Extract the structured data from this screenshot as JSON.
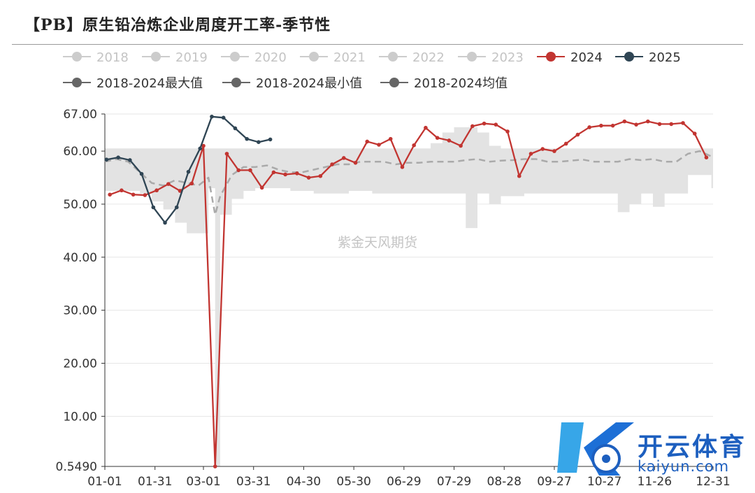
{
  "title": "【PB】原生铅冶炼企业周度开工率-季节性",
  "watermark": "紫金天风期货",
  "logo": {
    "text": "开云体育",
    "sub": "kaiyun.com"
  },
  "chart_data": {
    "type": "line",
    "title": "【PB】原生铅冶炼企业周度开工率-季节性",
    "xlabel": "",
    "ylabel": "",
    "x_ticks": [
      "01-01",
      "01-31",
      "03-01",
      "03-31",
      "04-30",
      "05-30",
      "06-29",
      "07-29",
      "08-28",
      "09-27",
      "10-27",
      "11-26",
      "12-31"
    ],
    "y_ticks": [
      {
        "value": 0.549,
        "label": "0.5490"
      },
      {
        "value": 10,
        "label": "10.00"
      },
      {
        "value": 20,
        "label": "20.00"
      },
      {
        "value": 30,
        "label": "30.00"
      },
      {
        "value": 40,
        "label": "40.00"
      },
      {
        "value": 50,
        "label": "50.00"
      },
      {
        "value": 60,
        "label": "60.00"
      },
      {
        "value": 67,
        "label": "67.00"
      }
    ],
    "ylim": [
      0.549,
      67
    ],
    "grid": true,
    "legend_position": "top",
    "legend": [
      {
        "name": "2018",
        "color": "#cccccc",
        "active": false
      },
      {
        "name": "2019",
        "color": "#cccccc",
        "active": false
      },
      {
        "name": "2020",
        "color": "#cccccc",
        "active": false
      },
      {
        "name": "2021",
        "color": "#cccccc",
        "active": false
      },
      {
        "name": "2022",
        "color": "#cccccc",
        "active": false
      },
      {
        "name": "2023",
        "color": "#cccccc",
        "active": false
      },
      {
        "name": "2024",
        "color": "#c23531",
        "active": true
      },
      {
        "name": "2025",
        "color": "#2f4554",
        "active": true
      },
      {
        "name": "2018-2024最大值",
        "color": "#666666",
        "active": true
      },
      {
        "name": "2018-2024最小值",
        "color": "#666666",
        "active": true
      },
      {
        "name": "2018-2024均值",
        "color": "#666666",
        "active": true
      }
    ],
    "range_band": {
      "x": [
        "01-01",
        "01-08",
        "01-15",
        "01-22",
        "01-29",
        "02-05",
        "02-12",
        "02-19",
        "02-26",
        "03-04",
        "03-08",
        "03-11",
        "03-18",
        "03-25",
        "04-01",
        "04-08",
        "04-15",
        "04-22",
        "04-29",
        "05-06",
        "05-13",
        "05-20",
        "05-27",
        "06-03",
        "06-10",
        "06-17",
        "06-24",
        "07-01",
        "07-08",
        "07-15",
        "07-22",
        "07-29",
        "08-05",
        "08-12",
        "08-19",
        "08-26",
        "09-02",
        "09-09",
        "09-16",
        "09-23",
        "09-30",
        "10-07",
        "10-14",
        "10-21",
        "10-28",
        "11-04",
        "11-11",
        "11-18",
        "11-25",
        "12-02",
        "12-09",
        "12-16",
        "12-23",
        "12-30"
      ],
      "max": [
        60.5,
        60.5,
        60.5,
        60.5,
        60.5,
        60.5,
        60.5,
        60.5,
        60.5,
        60.5,
        60.5,
        60.5,
        60.5,
        60.5,
        60.5,
        60.5,
        60.5,
        60.5,
        60.5,
        60.5,
        60.5,
        60.5,
        60.5,
        60.5,
        60.5,
        60.5,
        60.5,
        60.5,
        60.5,
        61.5,
        63.5,
        64.5,
        64.5,
        63.5,
        61,
        60.5,
        60.5,
        60.5,
        60.5,
        60.5,
        60.5,
        60.5,
        60.5,
        60.5,
        60.5,
        60.5,
        60.5,
        60.5,
        60.5,
        60.5,
        60.5,
        60.5,
        60.5,
        60.5
      ],
      "min": [
        52.5,
        52.5,
        52.5,
        52,
        50.5,
        49,
        46.5,
        44.5,
        44.5,
        53,
        0.549,
        48,
        51,
        52.5,
        53,
        53,
        53,
        52.5,
        52.5,
        52,
        52,
        52,
        52.5,
        52.5,
        52,
        52,
        52,
        52,
        52,
        52,
        52,
        52,
        45.5,
        52,
        50,
        51.5,
        51.5,
        52,
        52,
        52,
        52,
        52,
        52,
        52,
        52,
        48.5,
        50,
        52,
        49.5,
        52,
        52,
        55.5,
        55.5,
        53
      ]
    },
    "series": [
      {
        "name": "2018-2024均值",
        "color": "#aaaaaa",
        "dashed": true,
        "x": [
          "01-01",
          "01-08",
          "01-15",
          "01-22",
          "01-29",
          "02-05",
          "02-12",
          "02-19",
          "02-26",
          "03-04",
          "03-08",
          "03-11",
          "03-18",
          "03-25",
          "04-01",
          "04-08",
          "04-15",
          "04-22",
          "04-29",
          "05-06",
          "05-13",
          "05-20",
          "05-27",
          "06-03",
          "06-10",
          "06-17",
          "06-24",
          "07-01",
          "07-08",
          "07-15",
          "07-22",
          "07-29",
          "08-05",
          "08-12",
          "08-19",
          "08-26",
          "09-02",
          "09-09",
          "09-16",
          "09-23",
          "09-30",
          "10-07",
          "10-14",
          "10-21",
          "10-28",
          "11-04",
          "11-11",
          "11-18",
          "11-25",
          "12-02",
          "12-09",
          "12-16",
          "12-23",
          "12-30"
        ],
        "y": [
          58,
          58.5,
          58,
          56,
          54,
          53.5,
          54.5,
          54,
          53.5,
          55,
          48,
          51.5,
          55.5,
          57,
          57,
          57.3,
          56.5,
          56,
          56,
          56.5,
          57,
          57.5,
          57.5,
          58,
          58,
          58,
          57.5,
          57.8,
          57.8,
          58,
          58,
          58,
          58.3,
          58.5,
          58,
          58.2,
          58.3,
          58.5,
          58.5,
          58,
          58,
          58.2,
          58.4,
          58,
          58,
          58,
          58.5,
          58.3,
          58.5,
          58,
          58,
          59.5,
          60,
          59
        ]
      },
      {
        "name": "2024",
        "color": "#c23531",
        "x": [
          "01-04",
          "01-11",
          "01-18",
          "01-25",
          "02-01",
          "02-08",
          "02-15",
          "02-22",
          "03-01",
          "03-08",
          "03-15",
          "03-22",
          "03-29",
          "04-05",
          "04-12",
          "04-19",
          "04-26",
          "05-03",
          "05-10",
          "05-17",
          "05-24",
          "05-31",
          "06-07",
          "06-14",
          "06-21",
          "06-28",
          "07-05",
          "07-12",
          "07-19",
          "07-26",
          "08-02",
          "08-09",
          "08-16",
          "08-23",
          "08-30",
          "09-06",
          "09-13",
          "09-20",
          "09-27",
          "10-04",
          "10-11",
          "10-18",
          "10-25",
          "11-01",
          "11-08",
          "11-15",
          "11-22",
          "11-29",
          "12-06",
          "12-13",
          "12-20",
          "12-27"
        ],
        "y": [
          51.8,
          52.6,
          51.8,
          51.7,
          52.6,
          53.8,
          52.5,
          53.9,
          61,
          0.549,
          59.5,
          56.4,
          56.4,
          53.1,
          56,
          55.6,
          55.8,
          55,
          55.3,
          57.5,
          58.7,
          57.8,
          61.8,
          61.2,
          62.3,
          57,
          61.1,
          64.4,
          62.5,
          62,
          61,
          64.7,
          65.2,
          65,
          63.7,
          55.3,
          59.5,
          60.4,
          60,
          61.4,
          63.1,
          64.5,
          64.8,
          64.8,
          65.6,
          65,
          65.6,
          65.1,
          65.1,
          65.3,
          63.3,
          58.8
        ]
      },
      {
        "name": "2025",
        "color": "#2f4554",
        "x": [
          "01-02",
          "01-09",
          "01-16",
          "01-23",
          "01-30",
          "02-06",
          "02-13",
          "02-20",
          "02-27",
          "03-06",
          "03-13",
          "03-20",
          "03-27",
          "04-03",
          "04-10"
        ],
        "y": [
          58.4,
          58.8,
          58.3,
          55.7,
          49.4,
          46.5,
          49.4,
          56.1,
          60.5,
          66.5,
          66.3,
          64.3,
          62.3,
          61.7,
          62.2
        ]
      }
    ]
  }
}
